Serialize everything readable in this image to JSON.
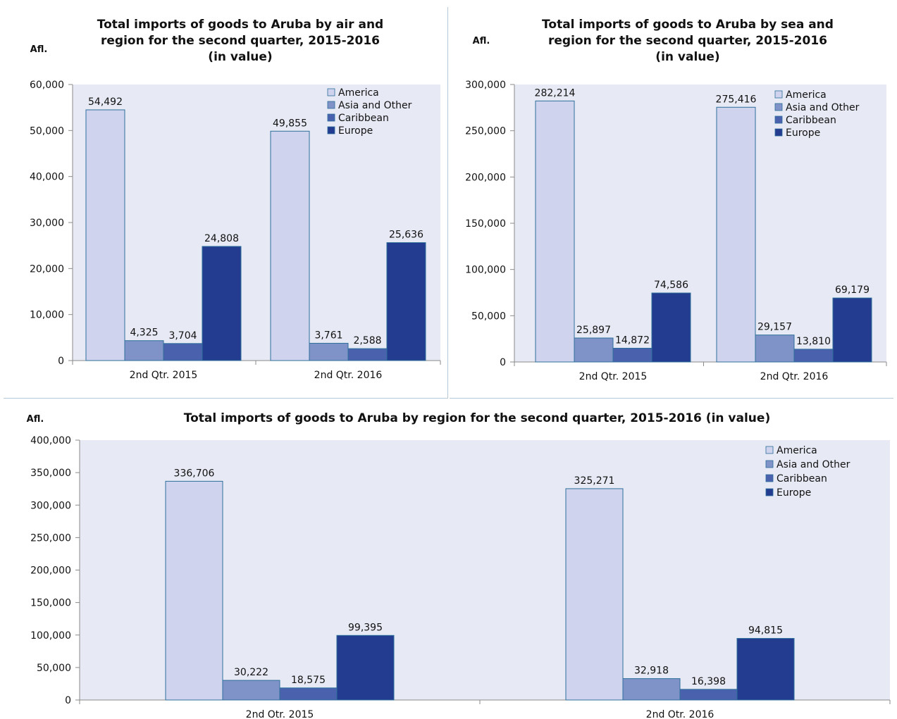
{
  "unit_label": "Afl.",
  "colors": {
    "America": "#cfd3ee",
    "Asia and Other": "#7f93c8",
    "Caribbean": "#4a62ad",
    "Europe": "#233c8f",
    "plot_bg": "#e7eaf5",
    "bar_stroke": "#2d6f9a"
  },
  "chart_data": [
    {
      "id": "air",
      "type": "bar",
      "title_lines": [
        "Total imports of goods to Aruba by air and",
        "region for the second quarter, 2015-2016",
        "(in value)"
      ],
      "ylabel": "Afl.",
      "categories": [
        "2nd Qtr. 2015",
        "2nd Qtr. 2016"
      ],
      "series": [
        {
          "name": "America",
          "values": [
            54492,
            49855
          ],
          "labels": [
            "54,492",
            "49,855"
          ]
        },
        {
          "name": "Asia and Other",
          "values": [
            4325,
            3761
          ],
          "labels": [
            "4,325",
            "3,761"
          ]
        },
        {
          "name": "Caribbean",
          "values": [
            3704,
            2588
          ],
          "labels": [
            "3,704",
            "2,588"
          ]
        },
        {
          "name": "Europe",
          "values": [
            24808,
            25636
          ],
          "labels": [
            "24,808",
            "25,636"
          ]
        }
      ],
      "ylim": [
        0,
        60000
      ],
      "yticks": [
        "0",
        "10,000",
        "20,000",
        "30,000",
        "40,000",
        "50,000",
        "60,000"
      ],
      "legend_position": "top-right",
      "grid": false
    },
    {
      "id": "sea",
      "type": "bar",
      "title_lines": [
        "Total imports of goods to Aruba by sea and",
        "region for the second quarter, 2015-2016",
        "(in value)"
      ],
      "ylabel": "Afl.",
      "categories": [
        "2nd Qtr. 2015",
        "2nd Qtr. 2016"
      ],
      "series": [
        {
          "name": "America",
          "values": [
            282214,
            275416
          ],
          "labels": [
            "282,214",
            "275,416"
          ]
        },
        {
          "name": "Asia and Other",
          "values": [
            25897,
            29157
          ],
          "labels": [
            "25,897",
            "29,157"
          ]
        },
        {
          "name": "Caribbean",
          "values": [
            14872,
            13810
          ],
          "labels": [
            "14,872",
            "13,810"
          ]
        },
        {
          "name": "Europe",
          "values": [
            74586,
            69179
          ],
          "labels": [
            "74,586",
            "69,179"
          ]
        }
      ],
      "ylim": [
        0,
        300000
      ],
      "yticks": [
        "0",
        "50,000",
        "100,000",
        "150,000",
        "200,000",
        "250,000",
        "300,000"
      ],
      "legend_position": "top-right",
      "grid": false
    },
    {
      "id": "total",
      "type": "bar",
      "title_lines": [
        "Total imports of goods to Aruba  by region for the second quarter, 2015-2016  (in value)"
      ],
      "ylabel": "Afl.",
      "categories": [
        "2nd Qtr. 2015",
        "2nd Qtr. 2016"
      ],
      "series": [
        {
          "name": "America",
          "values": [
            336706,
            325271
          ],
          "labels": [
            "336,706",
            "325,271"
          ]
        },
        {
          "name": "Asia and Other",
          "values": [
            30222,
            32918
          ],
          "labels": [
            "30,222",
            "32,918"
          ]
        },
        {
          "name": "Caribbean",
          "values": [
            18575,
            16398
          ],
          "labels": [
            "18,575",
            "16,398"
          ]
        },
        {
          "name": "Europe",
          "values": [
            99395,
            94815
          ],
          "labels": [
            "99,395",
            "94,815"
          ]
        }
      ],
      "ylim": [
        0,
        400000
      ],
      "yticks": [
        "0",
        "50,000",
        "100,000",
        "150,000",
        "200,000",
        "250,000",
        "300,000",
        "350,000",
        "400,000"
      ],
      "legend_position": "top-right",
      "grid": false
    }
  ]
}
